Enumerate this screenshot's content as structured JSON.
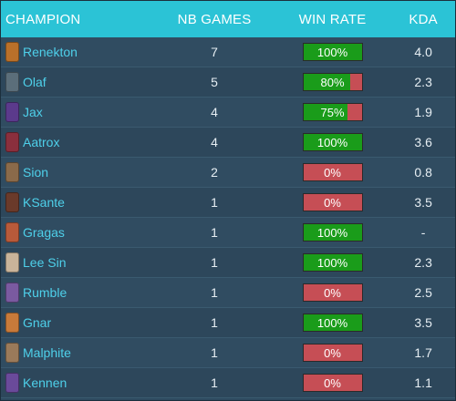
{
  "header": {
    "champion": "CHAMPION",
    "games": "NB GAMES",
    "winrate": "WIN RATE",
    "kda": "KDA"
  },
  "colors": {
    "header_bg": "#2bc3d6",
    "win_fill": "#1a9c1a",
    "loss_fill": "#c64e55",
    "champion_name": "#4ed0ea"
  },
  "rows": [
    {
      "champion": "Renekton",
      "icon": "renekton-portrait-icon",
      "games": "7",
      "winrate_label": "100%",
      "winrate": 1.0,
      "kda": "4.0",
      "portrait": "#b9702a"
    },
    {
      "champion": "Olaf",
      "icon": "olaf-portrait-icon",
      "games": "5",
      "winrate_label": "80%",
      "winrate": 0.8,
      "kda": "2.3",
      "portrait": "#5b6e7a"
    },
    {
      "champion": "Jax",
      "icon": "jax-portrait-icon",
      "games": "4",
      "winrate_label": "75%",
      "winrate": 0.75,
      "kda": "1.9",
      "portrait": "#5b3a8c"
    },
    {
      "champion": "Aatrox",
      "icon": "aatrox-portrait-icon",
      "games": "4",
      "winrate_label": "100%",
      "winrate": 1.0,
      "kda": "3.6",
      "portrait": "#8a2f3d"
    },
    {
      "champion": "Sion",
      "icon": "sion-portrait-icon",
      "games": "2",
      "winrate_label": "0%",
      "winrate": 0.0,
      "kda": "0.8",
      "portrait": "#8a6a4a"
    },
    {
      "champion": "KSante",
      "icon": "ksante-portrait-icon",
      "games": "1",
      "winrate_label": "0%",
      "winrate": 0.0,
      "kda": "3.5",
      "portrait": "#6a3a2a"
    },
    {
      "champion": "Gragas",
      "icon": "gragas-portrait-icon",
      "games": "1",
      "winrate_label": "100%",
      "winrate": 1.0,
      "kda": "-",
      "portrait": "#b85a3a"
    },
    {
      "champion": "Lee Sin",
      "icon": "lee-sin-portrait-icon",
      "games": "1",
      "winrate_label": "100%",
      "winrate": 1.0,
      "kda": "2.3",
      "portrait": "#c9b49a"
    },
    {
      "champion": "Rumble",
      "icon": "rumble-portrait-icon",
      "games": "1",
      "winrate_label": "0%",
      "winrate": 0.0,
      "kda": "2.5",
      "portrait": "#7a5aa0"
    },
    {
      "champion": "Gnar",
      "icon": "gnar-portrait-icon",
      "games": "1",
      "winrate_label": "100%",
      "winrate": 1.0,
      "kda": "3.5",
      "portrait": "#c87a3a"
    },
    {
      "champion": "Malphite",
      "icon": "malphite-portrait-icon",
      "games": "1",
      "winrate_label": "0%",
      "winrate": 0.0,
      "kda": "1.7",
      "portrait": "#9a7a5a"
    },
    {
      "champion": "Kennen",
      "icon": "kennen-portrait-icon",
      "games": "1",
      "winrate_label": "0%",
      "winrate": 0.0,
      "kda": "1.1",
      "portrait": "#6a4a9a"
    }
  ]
}
